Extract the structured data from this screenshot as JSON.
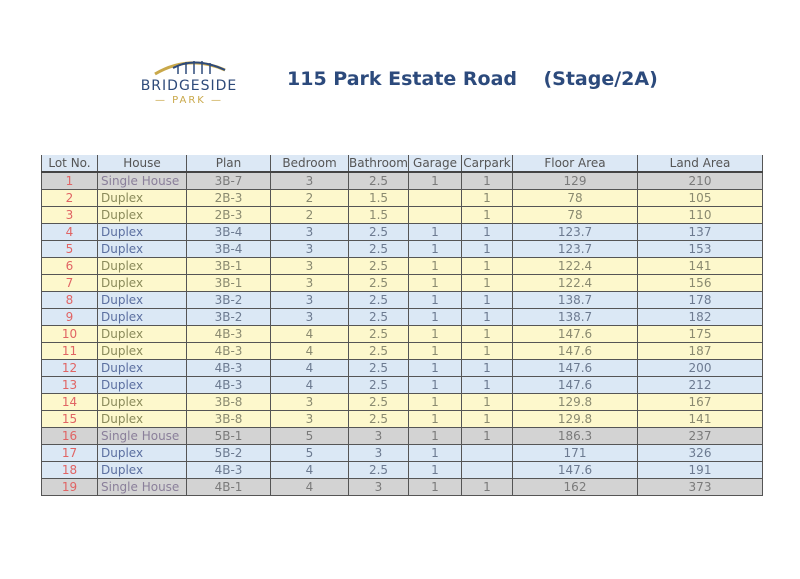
{
  "logo": {
    "name": "BRIDGESIDE",
    "sub": "PARK"
  },
  "title": "115 Park Estate Road    (Stage/2A)",
  "colors": {
    "title": "#2c4a7c",
    "single_house_row": "#d3d3d3",
    "yellow_row": "#fdf8cc",
    "blue_row": "#dbe8f5",
    "lot_number": "#e06464"
  },
  "table": {
    "headers": [
      "Lot No.",
      "House",
      "Plan",
      "Bedroom",
      "Bathroom",
      "Garage",
      "Carpark",
      "Floor Area",
      "Land Area"
    ],
    "rows": [
      {
        "row_color": "g",
        "cells": [
          "1",
          "Single House",
          "3B-7",
          "3",
          "2.5",
          "1",
          "1",
          "129",
          "210"
        ]
      },
      {
        "row_color": "y",
        "cells": [
          "2",
          "Duplex",
          "2B-3",
          "2",
          "1.5",
          "",
          "1",
          "78",
          "105"
        ]
      },
      {
        "row_color": "y",
        "cells": [
          "3",
          "Duplex",
          "2B-3",
          "2",
          "1.5",
          "",
          "1",
          "78",
          "110"
        ]
      },
      {
        "row_color": "b",
        "cells": [
          "4",
          "Duplex",
          "3B-4",
          "3",
          "2.5",
          "1",
          "1",
          "123.7",
          "137"
        ]
      },
      {
        "row_color": "b",
        "cells": [
          "5",
          "Duplex",
          "3B-4",
          "3",
          "2.5",
          "1",
          "1",
          "123.7",
          "153"
        ]
      },
      {
        "row_color": "y",
        "cells": [
          "6",
          "Duplex",
          "3B-1",
          "3",
          "2.5",
          "1",
          "1",
          "122.4",
          "141"
        ]
      },
      {
        "row_color": "y",
        "cells": [
          "7",
          "Duplex",
          "3B-1",
          "3",
          "2.5",
          "1",
          "1",
          "122.4",
          "156"
        ]
      },
      {
        "row_color": "b",
        "cells": [
          "8",
          "Duplex",
          "3B-2",
          "3",
          "2.5",
          "1",
          "1",
          "138.7",
          "178"
        ]
      },
      {
        "row_color": "b",
        "cells": [
          "9",
          "Duplex",
          "3B-2",
          "3",
          "2.5",
          "1",
          "1",
          "138.7",
          "182"
        ]
      },
      {
        "row_color": "y",
        "cells": [
          "10",
          "Duplex",
          "4B-3",
          "4",
          "2.5",
          "1",
          "1",
          "147.6",
          "175"
        ]
      },
      {
        "row_color": "y",
        "cells": [
          "11",
          "Duplex",
          "4B-3",
          "4",
          "2.5",
          "1",
          "1",
          "147.6",
          "187"
        ]
      },
      {
        "row_color": "b",
        "cells": [
          "12",
          "Duplex",
          "4B-3",
          "4",
          "2.5",
          "1",
          "1",
          "147.6",
          "200"
        ]
      },
      {
        "row_color": "b",
        "cells": [
          "13",
          "Duplex",
          "4B-3",
          "4",
          "2.5",
          "1",
          "1",
          "147.6",
          "212"
        ]
      },
      {
        "row_color": "y",
        "cells": [
          "14",
          "Duplex",
          "3B-8",
          "3",
          "2.5",
          "1",
          "1",
          "129.8",
          "167"
        ]
      },
      {
        "row_color": "y",
        "cells": [
          "15",
          "Duplex",
          "3B-8",
          "3",
          "2.5",
          "1",
          "1",
          "129.8",
          "141"
        ]
      },
      {
        "row_color": "g",
        "cells": [
          "16",
          "Single House",
          "5B-1",
          "5",
          "3",
          "1",
          "1",
          "186.3",
          "237"
        ]
      },
      {
        "row_color": "b",
        "cells": [
          "17",
          "Duplex",
          "5B-2",
          "5",
          "3",
          "1",
          "",
          "171",
          "326"
        ]
      },
      {
        "row_color": "b",
        "cells": [
          "18",
          "Duplex",
          "4B-3",
          "4",
          "2.5",
          "1",
          "",
          "147.6",
          "191"
        ]
      },
      {
        "row_color": "g",
        "cells": [
          "19",
          "Single House",
          "4B-1",
          "4",
          "3",
          "1",
          "1",
          "162",
          "373"
        ]
      }
    ]
  }
}
